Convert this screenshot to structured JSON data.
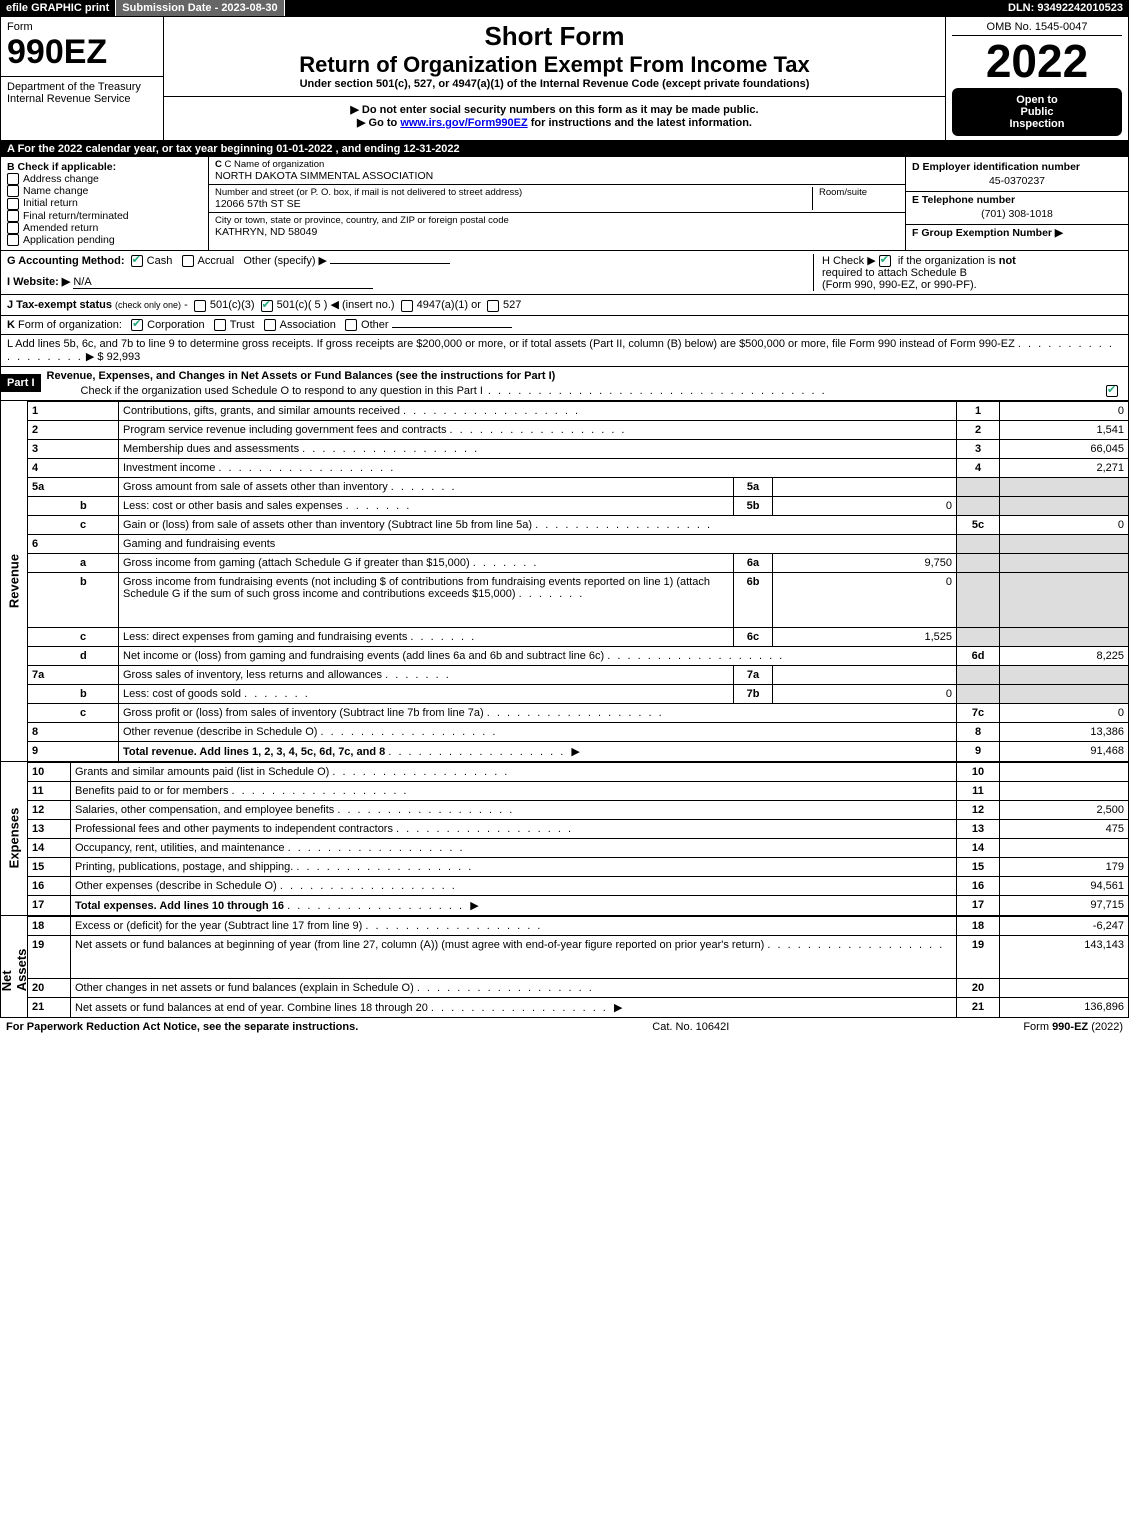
{
  "topbar": {
    "efile": "efile GRAPHIC print",
    "submission": "Submission Date - 2023-08-30",
    "dln": "DLN: 93492242010523"
  },
  "header": {
    "form_word": "Form",
    "form_no": "990EZ",
    "dept1": "Department of the Treasury",
    "dept2": "Internal Revenue Service",
    "short_form": "Short Form",
    "title": "Return of Organization Exempt From Income Tax",
    "subtitle": "Under section 501(c), 527, or 4947(a)(1) of the Internal Revenue Code (except private foundations)",
    "note1": "▶ Do not enter social security numbers on this form as it may be made public.",
    "note2_pre": "▶ Go to ",
    "note2_link": "www.irs.gov/Form990EZ",
    "note2_post": " for instructions and the latest information.",
    "omb": "OMB No. 1545-0047",
    "year": "2022",
    "open1": "Open to",
    "open2": "Public",
    "open3": "Inspection"
  },
  "row_a": "A  For the 2022 calendar year, or tax year beginning 01-01-2022 , and ending 12-31-2022",
  "col_b": {
    "hdr": "B  Check if applicable:",
    "items": [
      "Address change",
      "Name change",
      "Initial return",
      "Final return/terminated",
      "Amended return",
      "Application pending"
    ]
  },
  "col_c": {
    "name_lbl": "C Name of organization",
    "name": "NORTH DAKOTA SIMMENTAL ASSOCIATION",
    "street_lbl": "Number and street (or P. O. box, if mail is not delivered to street address)",
    "room_lbl": "Room/suite",
    "street": "12066 57th ST SE",
    "city_lbl": "City or town, state or province, country, and ZIP or foreign postal code",
    "city": "KATHRYN, ND  58049"
  },
  "col_d": {
    "ein_lbl": "D Employer identification number",
    "ein": "45-0370237",
    "tel_lbl": "E Telephone number",
    "tel": "(701) 308-1018",
    "group_lbl": "F Group Exemption Number  ▶"
  },
  "row_g": {
    "lbl": "G Accounting Method:",
    "cash": "Cash",
    "accrual": "Accrual",
    "other": "Other (specify) ▶"
  },
  "row_h": {
    "text1": "H  Check ▶ ",
    "text2": " if the organization is ",
    "not": "not",
    "text3": " required to attach Schedule B",
    "text4": "(Form 990, 990-EZ, or 990-PF)."
  },
  "row_i": {
    "lbl": "I Website: ▶",
    "val": "N/A"
  },
  "row_j": "J Tax-exempt status (check only one) -  ▢ 501(c)(3)  ☑ 501(c)( 5 ) ◀ (insert no.)  ▢ 4947(a)(1) or  ▢ 527",
  "row_k": "K Form of organization:   ☑ Corporation   ▢ Trust   ▢ Association   ▢ Other",
  "row_l": {
    "text": "L Add lines 5b, 6c, and 7b to line 9 to determine gross receipts. If gross receipts are $200,000 or more, or if total assets (Part II, column (B) below) are $500,000 or more, file Form 990 instead of Form 990-EZ",
    "arrow": "▶ $",
    "val": "92,993"
  },
  "part1": {
    "hdr": "Part I",
    "title": "Revenue, Expenses, and Changes in Net Assets or Fund Balances (see the instructions for Part I)",
    "sub": "Check if the organization used Schedule O to respond to any question in this Part I",
    "checked": true
  },
  "side_labels": {
    "revenue": "Revenue",
    "expenses": "Expenses",
    "net": "Net Assets"
  },
  "revenue": [
    {
      "n": "1",
      "d": "Contributions, gifts, grants, and similar amounts received",
      "rn": "1",
      "rv": "0"
    },
    {
      "n": "2",
      "d": "Program service revenue including government fees and contracts",
      "rn": "2",
      "rv": "1,541"
    },
    {
      "n": "3",
      "d": "Membership dues and assessments",
      "rn": "3",
      "rv": "66,045"
    },
    {
      "n": "4",
      "d": "Investment income",
      "rn": "4",
      "rv": "2,271"
    },
    {
      "n": "5a",
      "d": "Gross amount from sale of assets other than inventory",
      "ml": "5a",
      "mv": "",
      "shade": true
    },
    {
      "n": "b",
      "d": "Less: cost or other basis and sales expenses",
      "ml": "5b",
      "mv": "0",
      "shade": true
    },
    {
      "n": "c",
      "d": "Gain or (loss) from sale of assets other than inventory (Subtract line 5b from line 5a)",
      "rn": "5c",
      "rv": "0"
    },
    {
      "n": "6",
      "d": "Gaming and fundraising events",
      "shade": true,
      "noright": true
    },
    {
      "n": "a",
      "d": "Gross income from gaming (attach Schedule G if greater than $15,000)",
      "ml": "6a",
      "mv": "9,750",
      "shade": true
    },
    {
      "n": "b",
      "d": "Gross income from fundraising events (not including $                    of contributions from fundraising events reported on line 1) (attach Schedule G if the sum of such gross income and contributions exceeds $15,000)",
      "ml": "6b",
      "mv": "0",
      "shade": true,
      "tall": true
    },
    {
      "n": "c",
      "d": "Less: direct expenses from gaming and fundraising events",
      "ml": "6c",
      "mv": "1,525",
      "shade": true
    },
    {
      "n": "d",
      "d": "Net income or (loss) from gaming and fundraising events (add lines 6a and 6b and subtract line 6c)",
      "rn": "6d",
      "rv": "8,225"
    },
    {
      "n": "7a",
      "d": "Gross sales of inventory, less returns and allowances",
      "ml": "7a",
      "mv": "",
      "shade": true
    },
    {
      "n": "b",
      "d": "Less: cost of goods sold",
      "ml": "7b",
      "mv": "0",
      "shade": true
    },
    {
      "n": "c",
      "d": "Gross profit or (loss) from sales of inventory (Subtract line 7b from line 7a)",
      "rn": "7c",
      "rv": "0"
    },
    {
      "n": "8",
      "d": "Other revenue (describe in Schedule O)",
      "rn": "8",
      "rv": "13,386"
    },
    {
      "n": "9",
      "d": "Total revenue. Add lines 1, 2, 3, 4, 5c, 6d, 7c, and 8",
      "rn": "9",
      "rv": "91,468",
      "bold": true,
      "arrow": true
    }
  ],
  "expenses": [
    {
      "n": "10",
      "d": "Grants and similar amounts paid (list in Schedule O)",
      "rn": "10",
      "rv": ""
    },
    {
      "n": "11",
      "d": "Benefits paid to or for members",
      "rn": "11",
      "rv": ""
    },
    {
      "n": "12",
      "d": "Salaries, other compensation, and employee benefits",
      "rn": "12",
      "rv": "2,500"
    },
    {
      "n": "13",
      "d": "Professional fees and other payments to independent contractors",
      "rn": "13",
      "rv": "475"
    },
    {
      "n": "14",
      "d": "Occupancy, rent, utilities, and maintenance",
      "rn": "14",
      "rv": ""
    },
    {
      "n": "15",
      "d": "Printing, publications, postage, and shipping.",
      "rn": "15",
      "rv": "179"
    },
    {
      "n": "16",
      "d": "Other expenses (describe in Schedule O)",
      "rn": "16",
      "rv": "94,561"
    },
    {
      "n": "17",
      "d": "Total expenses. Add lines 10 through 16",
      "rn": "17",
      "rv": "97,715",
      "bold": true,
      "arrow": true
    }
  ],
  "net": [
    {
      "n": "18",
      "d": "Excess or (deficit) for the year (Subtract line 17 from line 9)",
      "rn": "18",
      "rv": "-6,247"
    },
    {
      "n": "19",
      "d": "Net assets or fund balances at beginning of year (from line 27, column (A)) (must agree with end-of-year figure reported on prior year's return)",
      "rn": "19",
      "rv": "143,143",
      "tall": true
    },
    {
      "n": "20",
      "d": "Other changes in net assets or fund balances (explain in Schedule O)",
      "rn": "20",
      "rv": ""
    },
    {
      "n": "21",
      "d": "Net assets or fund balances at end of year. Combine lines 18 through 20",
      "rn": "21",
      "rv": "136,896",
      "arrow": true
    }
  ],
  "footer": {
    "left": "For Paperwork Reduction Act Notice, see the separate instructions.",
    "mid": "Cat. No. 10642I",
    "right_pre": "Form ",
    "right_b": "990-EZ",
    "right_post": " (2022)"
  }
}
